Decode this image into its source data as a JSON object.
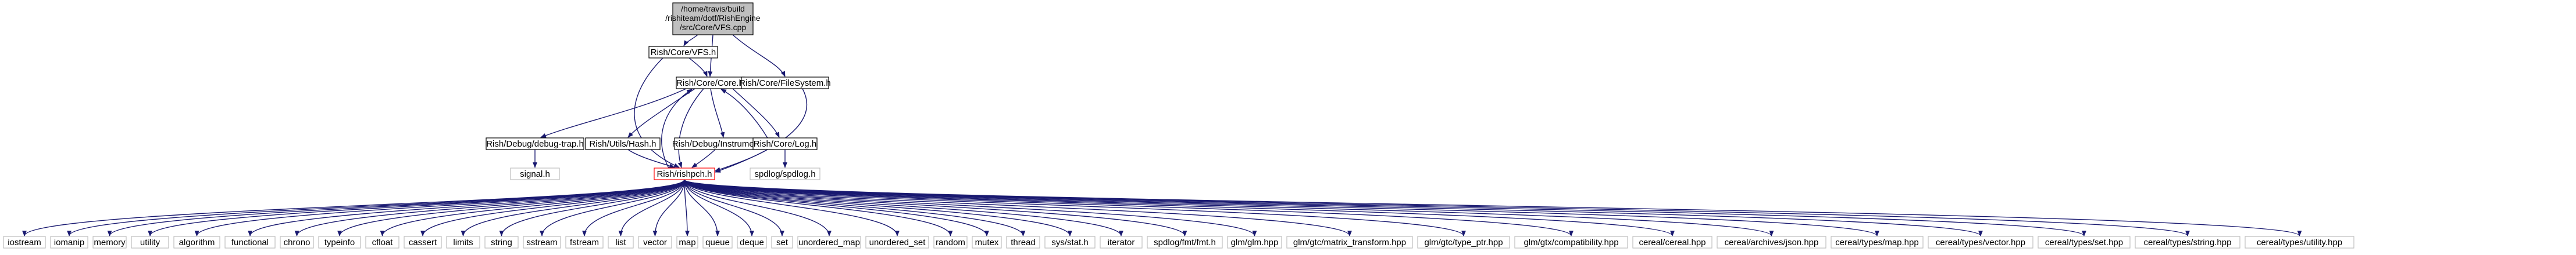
{
  "root": {
    "lines": [
      "/home/travis/build",
      "/rishiteam/dotf/RishEngine",
      "/src/Core/VFS.cpp"
    ]
  },
  "nodes": {
    "vfs_h": "Rish/Core/VFS.h",
    "core_h": "Rish/Core/Core.h",
    "filesystem_h": "Rish/Core/FileSystem.h",
    "debugtrap_h": "Rish/Debug/debug-trap.h",
    "hash_h": "Rish/Utils/Hash.h",
    "instrumentor_h": "Rish/Debug/Instrumentor.h",
    "log_h": "Rish/Core/Log.h",
    "signal_h": "signal.h",
    "spdlog_h": "spdlog/spdlog.h",
    "rishpch_h": "Rish/rishpch.h"
  },
  "leaves": [
    "iostream",
    "iomanip",
    "memory",
    "utility",
    "algorithm",
    "functional",
    "chrono",
    "typeinfo",
    "cfloat",
    "cassert",
    "limits",
    "string",
    "sstream",
    "fstream",
    "list",
    "vector",
    "map",
    "queue",
    "deque",
    "set",
    "unordered_map",
    "unordered_set",
    "random",
    "mutex",
    "thread",
    "sys/stat.h",
    "iterator",
    "spdlog/fmt/fmt.h",
    "glm/glm.hpp",
    "glm/gtc/matrix_transform.hpp",
    "glm/gtc/type_ptr.hpp",
    "glm/gtx/compatibility.hpp",
    "cereal/cereal.hpp",
    "cereal/archives/json.hpp",
    "cereal/types/map.hpp",
    "cereal/types/vector.hpp",
    "cereal/types/set.hpp",
    "cereal/types/string.hpp",
    "cereal/types/utility.hpp"
  ]
}
